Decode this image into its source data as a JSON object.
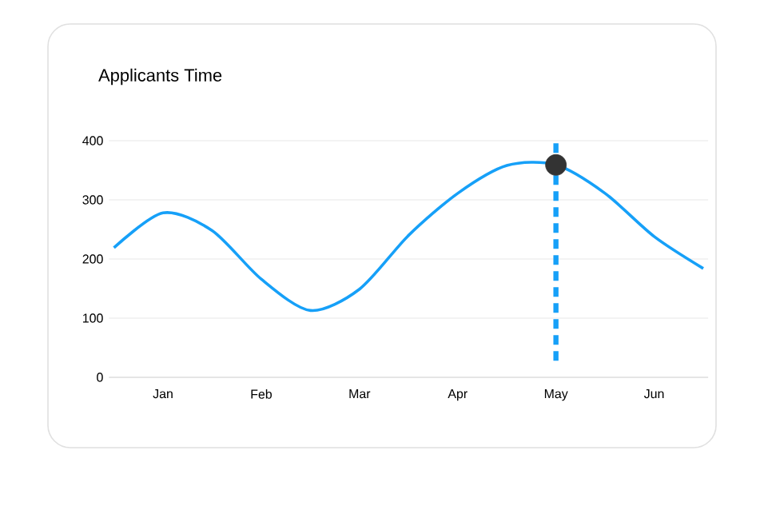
{
  "chart_data": {
    "type": "line",
    "title": "Applicants Time",
    "categories": [
      null,
      "Jan",
      null,
      "Feb",
      null,
      "Mar",
      null,
      "Apr",
      null,
      "May",
      null,
      "Jun",
      null
    ],
    "ylim": [
      0,
      400
    ],
    "yticks": [
      0,
      100,
      200,
      300,
      400
    ],
    "grid": "y",
    "series": [
      {
        "color": "#16a0f8",
        "line_style": "solid",
        "marker": "none",
        "values": [
          219,
          278,
          248,
          166,
          113,
          149,
          240,
          311,
          358,
          359,
          311,
          238,
          184
        ]
      },
      {
        "type": "scatter",
        "color": "#333333",
        "marker": "circle",
        "values": [
          null,
          null,
          null,
          null,
          null,
          null,
          null,
          null,
          null,
          359,
          null,
          null,
          null
        ]
      }
    ],
    "ref_lines": [
      {
        "axis": "x",
        "value": "May",
        "color": "#16a0f8",
        "line_style": "dashed"
      }
    ]
  }
}
